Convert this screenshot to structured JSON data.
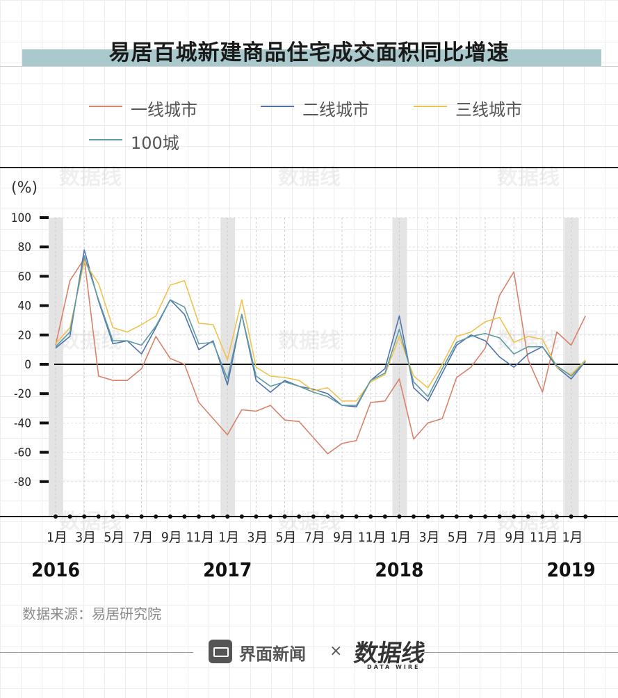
{
  "title": "易居百城新建商品住宅成交面积同比增速",
  "unit_label": "(%)",
  "source": "数据来源：易居研究院",
  "footer": {
    "brand": "界面新闻",
    "times": "×",
    "logo": "数据线",
    "logo_sub": "DATA WIRE"
  },
  "watermark": {
    "text": "数据线",
    "sub": "DATA WIRE"
  },
  "colors": {
    "tier1": "#d9826a",
    "tier2": "#4f73ad",
    "tier3": "#f0c24e",
    "city100": "#5e9aa3",
    "title_bar": "#a9c9cc",
    "band": "#e4e4e4"
  },
  "chart_data": {
    "type": "line",
    "title": "易居百城新建商品住宅成交面积同比增速",
    "ylabel": "(%)",
    "ylim": [
      -100,
      100
    ],
    "yticks": [
      100,
      80,
      60,
      40,
      20,
      0,
      -20,
      -40,
      -60,
      -80
    ],
    "x_tick_labels": [
      "1月",
      "3月",
      "5月",
      "7月",
      "9月",
      "11月",
      "1月",
      "3月",
      "5月",
      "7月",
      "9月",
      "11月",
      "1月",
      "3月",
      "5月",
      "7月",
      "9月",
      "11月",
      "1月"
    ],
    "x_tick_months": [
      0,
      2,
      4,
      6,
      8,
      10,
      12,
      14,
      16,
      18,
      20,
      22,
      24,
      26,
      28,
      30,
      32,
      34,
      36
    ],
    "year_labels": [
      {
        "label": "2016",
        "month": 0
      },
      {
        "label": "2017",
        "month": 12
      },
      {
        "label": "2018",
        "month": 24
      },
      {
        "label": "2019",
        "month": 36
      }
    ],
    "shaded_months": [
      0,
      12,
      24,
      36
    ],
    "legend_placement": "top",
    "grid": true,
    "series": [
      {
        "name": "一线城市",
        "key": "tier1",
        "values": [
          13,
          57,
          72,
          -8,
          -11,
          -11,
          -3,
          19,
          4,
          0,
          -26,
          -37,
          -48,
          -31,
          -32,
          -28,
          -38,
          -39,
          -50,
          -61,
          -54,
          -52,
          -26,
          -25,
          -10,
          -51,
          -40,
          -37,
          -9,
          -2,
          11,
          47,
          63,
          3,
          -19,
          22,
          13,
          33
        ]
      },
      {
        "name": "二线城市",
        "key": "tier2",
        "values": [
          11,
          19,
          78,
          43,
          14,
          16,
          7,
          25,
          44,
          34,
          10,
          16,
          -14,
          34,
          -11,
          -19,
          -11,
          -15,
          -17,
          -20,
          -28,
          -29,
          -11,
          -3,
          33,
          -16,
          -25,
          -6,
          13,
          20,
          16,
          5,
          -2,
          7,
          12,
          -2,
          -10,
          2
        ]
      },
      {
        "name": "三线城市",
        "key": "tier3",
        "values": [
          14,
          25,
          70,
          55,
          25,
          22,
          27,
          33,
          54,
          57,
          28,
          27,
          3,
          44,
          -2,
          -8,
          -9,
          -11,
          -18,
          -16,
          -25,
          -25,
          -12,
          -7,
          19,
          -8,
          -16,
          0,
          19,
          22,
          29,
          32,
          15,
          19,
          17,
          -2,
          -7,
          3
        ]
      },
      {
        "name": "100城",
        "key": "city100",
        "values": [
          12,
          22,
          74,
          44,
          16,
          16,
          13,
          26,
          44,
          39,
          14,
          15,
          -10,
          34,
          -8,
          -15,
          -12,
          -15,
          -19,
          -22,
          -28,
          -28,
          -11,
          -6,
          24,
          -12,
          -22,
          -3,
          15,
          19,
          21,
          18,
          7,
          12,
          12,
          -1,
          -8,
          2
        ]
      }
    ]
  }
}
